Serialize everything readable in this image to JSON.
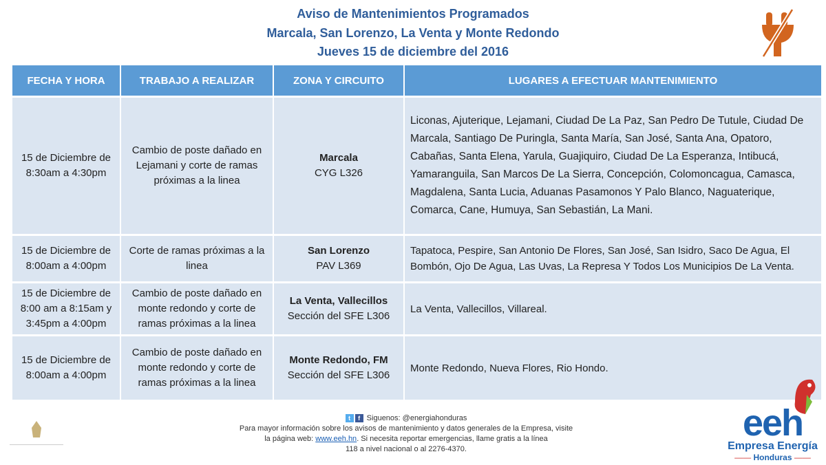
{
  "header": {
    "line1": "Aviso de Mantenimientos Programados",
    "line2": "Marcala, San Lorenzo, La Venta y Monte Redondo",
    "line3": "Jueves 15 de diciembre del 2016"
  },
  "colors": {
    "title": "#2f5d9a",
    "header_bg": "#5b9bd5",
    "row_bg": "#dbe5f1",
    "logo_orange": "#d2651f"
  },
  "table": {
    "columns": [
      "FECHA Y HORA",
      "TRABAJO A REALIZAR",
      "ZONA Y CIRCUITO",
      "LUGARES A EFECTUAR MANTENIMIENTO"
    ],
    "rows": [
      {
        "date": "15 de Diciembre de 8:30am a 4:30pm",
        "work": "Cambio de poste dañado en Lejamani y corte de ramas próximas a la linea",
        "zone": "Marcala",
        "circuit": "CYG L326",
        "places": "Liconas, Ajuterique, Lejamani, Ciudad De La Paz, San Pedro De Tutule, Ciudad De Marcala, Santiago De Puringla, Santa María, San José, Santa Ana, Opatoro, Cabañas, Santa Elena, Yarula, Guajiquiro, Ciudad De La Esperanza, Intibucá, Yamaranguila, San Marcos De La Sierra, Concepción, Colomoncagua, Camasca, Magdalena, Santa Lucia, Aduanas Pasamonos Y Palo Blanco, Naguaterique, Comarca, Cane, Humuya, San Sebastián, La Mani."
      },
      {
        "date": "15 de Diciembre de 8:00am a 4:00pm",
        "work": "Corte de ramas próximas a la linea",
        "zone": "San Lorenzo",
        "circuit": "PAV L369",
        "places": "Tapatoca, Pespire, San Antonio De Flores, San José, San Isidro, Saco De Agua, El Bombón, Ojo De Agua, Las Uvas, La Represa Y Todos Los Municipios De La Venta."
      },
      {
        "date": "15 de Diciembre de 8:00 am a 8:15am y 3:45pm a 4:00pm",
        "work": "Cambio de poste dañado en monte redondo y corte de ramas próximas a la linea",
        "zone": "La Venta, Vallecillos",
        "circuit": "Sección del SFE L306",
        "places": "La Venta, Vallecillos, Villareal."
      },
      {
        "date": "15 de Diciembre de 8:00am a 4:00pm",
        "work": "Cambio de poste dañado en monte redondo y corte de ramas próximas a la linea",
        "zone": "Monte Redondo, FM",
        "circuit": "Sección del SFE L306",
        "places": "Monte Redondo, Nueva Flores, Rio Hondo."
      }
    ]
  },
  "footer": {
    "social": "Siguenos: @energiahonduras",
    "line1": "Para mayor información sobre los avisos de mantenimiento y datos generales de la Empresa, visite",
    "line2a": "la página web:",
    "link": "www.eeh.hn",
    "line2b": ". Si necesita reportar emergencias, llame gratis a la línea",
    "line3": "118 a nivel nacional o al 2276-4370."
  },
  "logo": {
    "name": "eeh",
    "line1": "Empresa Energía",
    "line2": "Honduras"
  }
}
